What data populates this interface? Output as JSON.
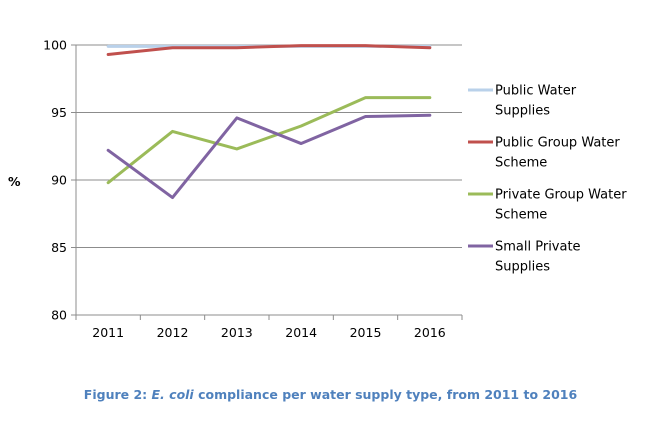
{
  "chart_data": {
    "type": "line",
    "title": "",
    "xlabel": "",
    "ylabel": "%",
    "ylim": [
      80,
      100
    ],
    "yticks": [
      80,
      85,
      90,
      95,
      100
    ],
    "categories": [
      "2011",
      "2012",
      "2013",
      "2014",
      "2015",
      "2016"
    ],
    "grid": "horizontal",
    "legend_position": "right",
    "series": [
      {
        "name": "Public Water Supplies",
        "color": "#b9d1ea",
        "legend_lines": [
          "Public Water",
          "Supplies"
        ],
        "values": [
          99.9,
          99.9,
          99.9,
          99.9,
          99.9,
          99.9
        ]
      },
      {
        "name": "Public Group Water Scheme",
        "color": "#c0504d",
        "legend_lines": [
          "Public Group Water",
          "Scheme"
        ],
        "values": [
          99.3,
          99.8,
          99.8,
          99.95,
          99.95,
          99.8
        ]
      },
      {
        "name": "Private Group Water Scheme",
        "color": "#9bbb59",
        "legend_lines": [
          "Private Group Water",
          "Scheme"
        ],
        "values": [
          89.8,
          93.6,
          92.3,
          94.0,
          96.1,
          96.1
        ]
      },
      {
        "name": "Small Private Supplies",
        "color": "#8064a2",
        "legend_lines": [
          "Small Private",
          "Supplies"
        ],
        "values": [
          92.2,
          88.7,
          94.6,
          92.7,
          94.7,
          94.8
        ]
      }
    ]
  },
  "caption": {
    "prefix": "Figure 2: ",
    "italic": "E. coli",
    "suffix": " compliance per water supply type, from 2011 to 2016"
  }
}
